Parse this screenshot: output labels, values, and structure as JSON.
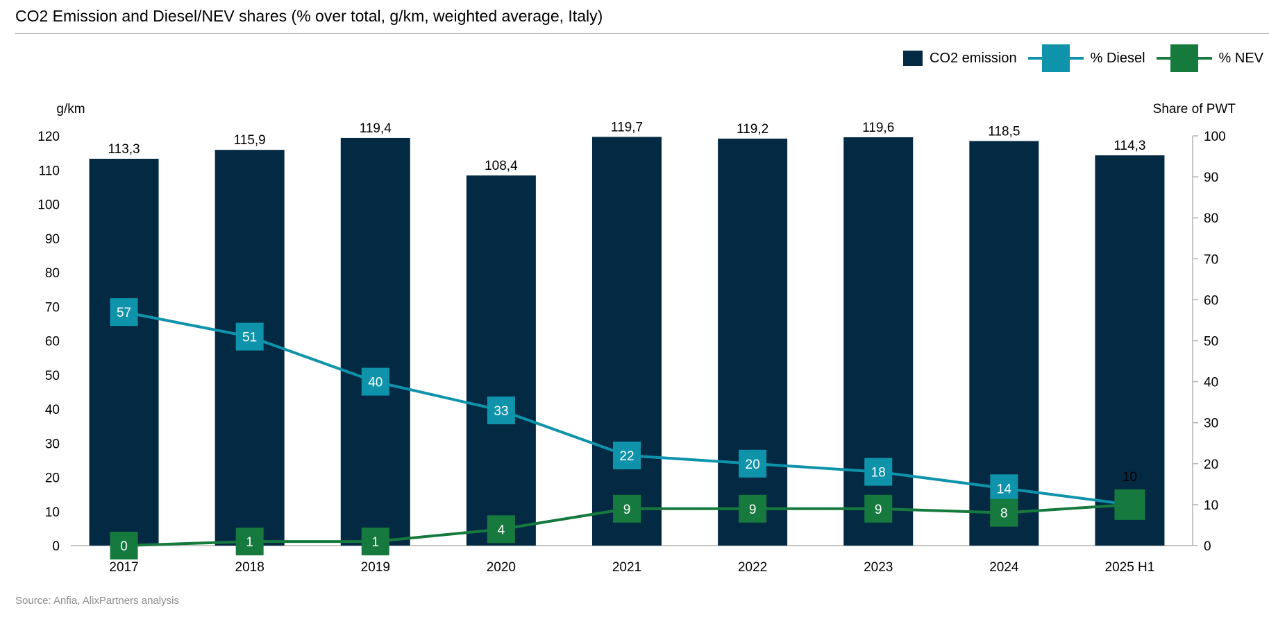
{
  "title": "CO2 Emission and Diesel/NEV shares (% over total, g/km, weighted average, Italy)",
  "source": "Source: Anfia, AlixPartners analysis",
  "colors": {
    "co2": "#042a43",
    "diesel": "#0e93ab",
    "nev": "#167a3e",
    "axis": "#b3b3b3"
  },
  "legend": [
    {
      "label": "CO2 emission",
      "kind": "bar",
      "color": "#042a43"
    },
    {
      "label": "% Diesel",
      "kind": "line",
      "color": "#0e93ab"
    },
    {
      "label": "% NEV",
      "kind": "line",
      "color": "#167a3e"
    }
  ],
  "chart_data": {
    "type": "bar",
    "categories": [
      "2017",
      "2018",
      "2019",
      "2020",
      "2021",
      "2022",
      "2023",
      "2024",
      "2025 H1"
    ],
    "ylabel": "g/km",
    "ylabel_right": "Share of PWT",
    "ylim": [
      0,
      120
    ],
    "yticks": [
      0,
      10,
      20,
      30,
      40,
      50,
      60,
      70,
      80,
      90,
      100,
      110,
      120
    ],
    "ylim_right": [
      0,
      100
    ],
    "yticks_right": [
      0,
      10,
      20,
      30,
      40,
      50,
      60,
      70,
      80,
      90,
      100
    ],
    "legend_position": "top-right",
    "grid": false,
    "series": [
      {
        "name": "CO2 emission",
        "type": "bar",
        "axis": "left",
        "values": [
          113.3,
          115.9,
          119.4,
          108.4,
          119.7,
          119.2,
          119.6,
          118.5,
          114.3
        ],
        "labels": [
          "113,3",
          "115,9",
          "119,4",
          "108,4",
          "119,7",
          "119,2",
          "119,6",
          "118,5",
          "114,3"
        ]
      },
      {
        "name": "% Diesel",
        "type": "line",
        "axis": "right",
        "values": [
          57,
          51,
          40,
          33,
          22,
          20,
          18,
          14,
          10
        ],
        "labels": [
          "57",
          "51",
          "40",
          "33",
          "22",
          "20",
          "18",
          "14",
          "10"
        ]
      },
      {
        "name": "% NEV",
        "type": "line",
        "axis": "right",
        "values": [
          0,
          1,
          1,
          4,
          9,
          9,
          9,
          8,
          10
        ],
        "labels": [
          "0",
          "1",
          "1",
          "4",
          "9",
          "9",
          "9",
          "8",
          ""
        ]
      }
    ]
  }
}
